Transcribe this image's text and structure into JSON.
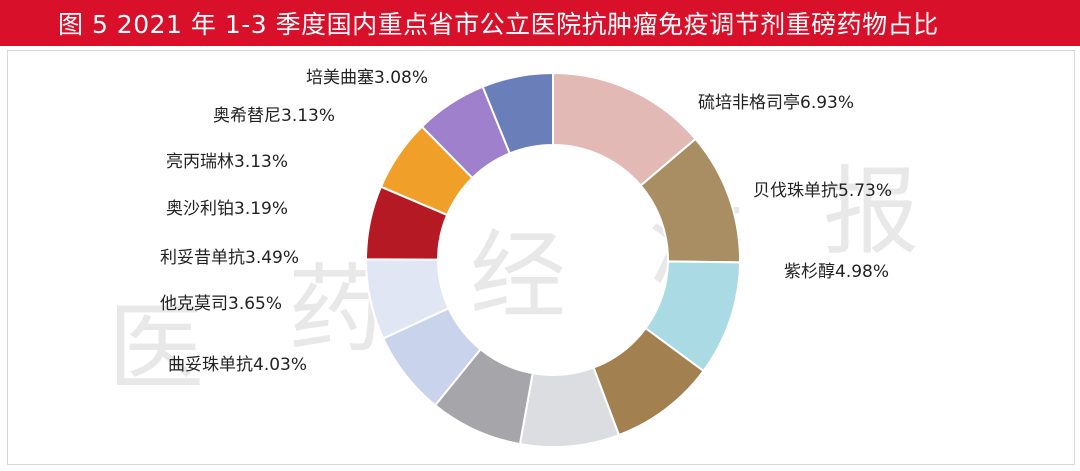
{
  "title": "图 5    2021 年 1-3 季度国内重点省市公立医院抗肿瘤免疫调节剂重磅药物占比",
  "watermark": "医药经济报",
  "chart_data": {
    "type": "pie",
    "variant": "donut",
    "series": [
      {
        "name": "硫培非格司亭",
        "label": "硫培非格司亭6.93%",
        "value": 6.93,
        "color": "#e2b9b4"
      },
      {
        "name": "贝伐珠单抗",
        "label": "贝伐珠单抗5.73%",
        "value": 5.73,
        "color": "#a88e62"
      },
      {
        "name": "紫杉醇",
        "label": "紫杉醇4.98%",
        "value": 4.98,
        "color": "#aadbe4"
      },
      {
        "name": "",
        "label": "",
        "value": 4.6,
        "color": "#a2804f"
      },
      {
        "name": "",
        "label": "",
        "value": 4.3,
        "color": "#dcdde0"
      },
      {
        "name": "曲妥珠单抗",
        "label": "曲妥珠单抗4.03%",
        "value": 4.03,
        "color": "#a6a6aa"
      },
      {
        "name": "他克莫司",
        "label": "他克莫司3.65%",
        "value": 3.65,
        "color": "#c9d3ec"
      },
      {
        "name": "利妥昔单抗",
        "label": "利妥昔单抗3.49%",
        "value": 3.49,
        "color": "#e1e6f5"
      },
      {
        "name": "奥沙利铂",
        "label": "奥沙利铂3.19%",
        "value": 3.19,
        "color": "#b51a24"
      },
      {
        "name": "亮丙瑞林",
        "label": "亮丙瑞林3.13%",
        "value": 3.13,
        "color": "#f0a029"
      },
      {
        "name": "奥希替尼",
        "label": "奥希替尼3.13%",
        "value": 3.13,
        "color": "#9f80cc"
      },
      {
        "name": "培美曲塞",
        "label": "培美曲塞3.08%",
        "value": 3.08,
        "color": "#6a7fba"
      }
    ]
  }
}
